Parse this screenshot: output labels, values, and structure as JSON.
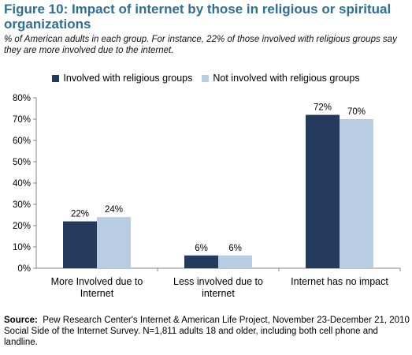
{
  "title": "Figure 10: Impact of internet by those in religious or spiritual organizations",
  "subtitle": "% of American adults in each group. For instance, 22% of those involved with religious groups say they are more involved due to the internet.",
  "source": {
    "label": "Source:",
    "text": "Pew Research Center's Internet & American Life Project, November 23-December 21, 2010 Social Side of the Internet Survey. N=1,811 adults 18 and older, including both cell phone and landline."
  },
  "colors": {
    "series1": "#243b5e",
    "series2": "#b8cce4",
    "title": "#2f6f94"
  },
  "chart_data": {
    "type": "bar",
    "categories": [
      "More Involved due to Internet",
      "Less involved due to internet",
      "Internet has no impact"
    ],
    "category_lines": [
      [
        "More Involved due to",
        "Internet"
      ],
      [
        "Less involved due to",
        "internet"
      ],
      [
        "Internet has no impact"
      ]
    ],
    "series": [
      {
        "name": "Involved with religious groups",
        "values": [
          22,
          6,
          72
        ],
        "labels": [
          "22%",
          "6%",
          "72%"
        ]
      },
      {
        "name": "Not involved with religious groups",
        "values": [
          24,
          6,
          70
        ],
        "labels": [
          "24%",
          "6%",
          "70%"
        ]
      }
    ],
    "ylim": [
      0,
      80
    ],
    "yticks": [
      0,
      10,
      20,
      30,
      40,
      50,
      60,
      70,
      80
    ],
    "ytick_labels": [
      "0%",
      "10%",
      "20%",
      "30%",
      "40%",
      "50%",
      "60%",
      "70%",
      "80%"
    ],
    "grid": false,
    "legend_position": "top"
  }
}
